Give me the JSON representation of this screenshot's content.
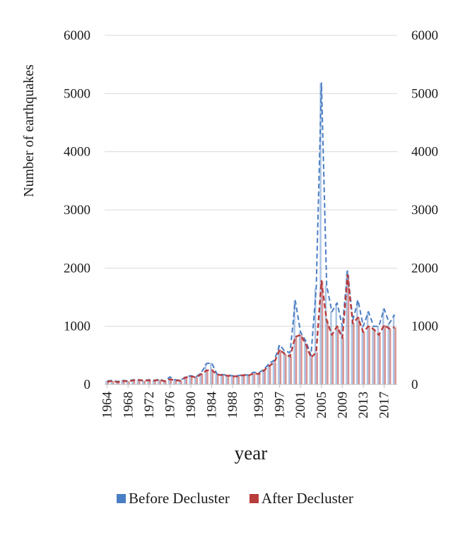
{
  "chart_data": {
    "type": "bar",
    "ylabel": "Number of earthquakes",
    "xlabel": "year",
    "ylim": [
      0,
      6000
    ],
    "yticks": [
      0,
      1000,
      2000,
      3000,
      4000,
      5000,
      6000
    ],
    "ytick_labels": [
      "0",
      "1000",
      "2000",
      "3000",
      "4000",
      "5000",
      "6000"
    ],
    "secondary_yticks": [
      0,
      1000,
      2000,
      3000,
      4000,
      5000,
      6000
    ],
    "secondary_ytick_labels": [
      "0",
      "1000",
      "2000",
      "3000",
      "4000",
      "5000",
      "6000"
    ],
    "grid": true,
    "legend_position": "bottom",
    "x": [
      1964,
      1965,
      1966,
      1967,
      1968,
      1969,
      1970,
      1971,
      1972,
      1973,
      1974,
      1975,
      1976,
      1977,
      1978,
      1979,
      1980,
      1981,
      1982,
      1983,
      1984,
      1985,
      1986,
      1987,
      1988,
      1989,
      1990,
      1991,
      1992,
      1993,
      1994,
      1995,
      1996,
      1997,
      1998,
      1999,
      2000,
      2001,
      2002,
      2003,
      2004,
      2005,
      2006,
      2007,
      2008,
      2009,
      2010,
      2011,
      2012,
      2013,
      2014,
      2015,
      2016,
      2017,
      2018,
      2019
    ],
    "xtick_labels": [
      "1964",
      "1968",
      "1972",
      "1976",
      "1980",
      "1984",
      "1988",
      "1993",
      "1997",
      "2001",
      "2005",
      "2009",
      "2013",
      "2017"
    ],
    "xtick_values": [
      1964,
      1968,
      1972,
      1976,
      1980,
      1984,
      1988,
      1993,
      1997,
      2001,
      2005,
      2009,
      2013,
      2017
    ],
    "series": [
      {
        "name": "Before Decluster",
        "color": "#4a7ec4",
        "values": [
          60,
          70,
          50,
          70,
          60,
          80,
          80,
          70,
          80,
          70,
          90,
          60,
          130,
          80,
          70,
          130,
          150,
          130,
          200,
          360,
          370,
          180,
          170,
          160,
          150,
          150,
          170,
          160,
          210,
          200,
          260,
          360,
          420,
          680,
          570,
          550,
          1440,
          900,
          750,
          500,
          1650,
          5180,
          1700,
          1250,
          1400,
          1000,
          1950,
          1100,
          1450,
          1000,
          1250,
          1000,
          1000,
          1300,
          1050,
          1200
        ]
      },
      {
        "name": "After Decluster",
        "color": "#b83c3c",
        "values": [
          50,
          60,
          40,
          60,
          55,
          70,
          75,
          65,
          70,
          65,
          80,
          55,
          90,
          70,
          65,
          120,
          140,
          120,
          180,
          240,
          250,
          170,
          160,
          150,
          140,
          140,
          160,
          150,
          190,
          180,
          240,
          320,
          380,
          600,
          520,
          480,
          820,
          850,
          700,
          460,
          550,
          1780,
          1100,
          850,
          1000,
          800,
          1880,
          1050,
          1150,
          900,
          1000,
          950,
          850,
          1020,
          960,
          980
        ]
      }
    ]
  }
}
